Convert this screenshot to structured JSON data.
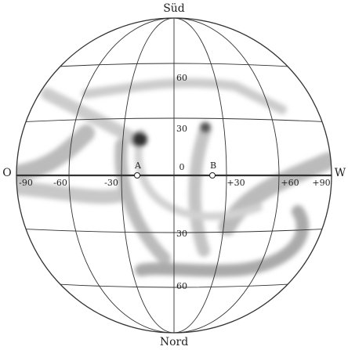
{
  "map": {
    "top_label": "Süd",
    "bottom_label": "Nord",
    "left_label": "O",
    "right_label": "W",
    "center_label": "0",
    "points": [
      "A",
      "B"
    ],
    "latitude_labels": [
      "60",
      "30",
      "30",
      "60"
    ],
    "longitude_labels": [
      "-90",
      "-60",
      "-30",
      "+30",
      "+60",
      "+90"
    ]
  }
}
